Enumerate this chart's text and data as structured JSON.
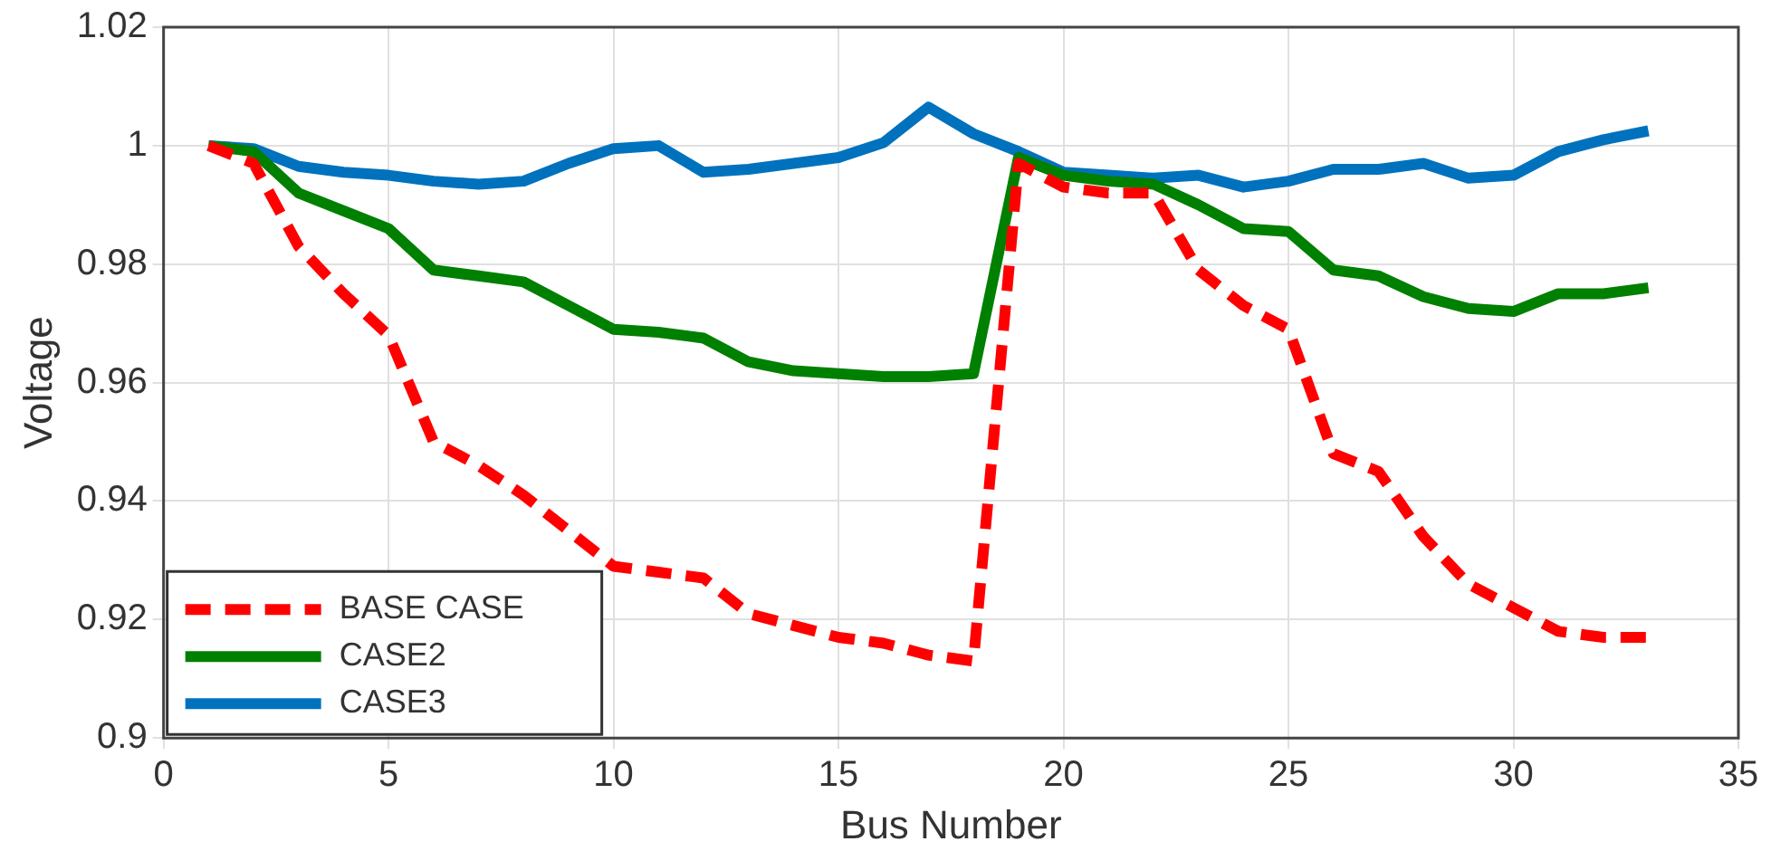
{
  "chart_data": {
    "type": "line",
    "xlabel": "Bus Number",
    "ylabel": "Voltage",
    "x": [
      1,
      2,
      3,
      4,
      5,
      6,
      7,
      8,
      9,
      10,
      11,
      12,
      13,
      14,
      15,
      16,
      17,
      18,
      19,
      20,
      21,
      22,
      23,
      24,
      25,
      26,
      27,
      28,
      29,
      30,
      31,
      32,
      33
    ],
    "series": [
      {
        "name": "BASE CASE",
        "color": "#ff0000",
        "line_style": "dashed",
        "values": [
          1.0,
          0.997,
          0.983,
          0.975,
          0.968,
          0.95,
          0.946,
          0.941,
          0.935,
          0.929,
          0.928,
          0.927,
          0.921,
          0.919,
          0.917,
          0.916,
          0.914,
          0.913,
          0.997,
          0.993,
          0.992,
          0.992,
          0.979,
          0.973,
          0.969,
          0.948,
          0.945,
          0.934,
          0.926,
          0.922,
          0.918,
          0.917,
          0.917
        ]
      },
      {
        "name": "CASE2",
        "color": "#008000",
        "line_style": "solid",
        "values": [
          1.0,
          0.999,
          0.992,
          0.989,
          0.986,
          0.979,
          0.978,
          0.977,
          0.973,
          0.969,
          0.9685,
          0.9675,
          0.9635,
          0.962,
          0.9615,
          0.961,
          0.961,
          0.9615,
          0.998,
          0.995,
          0.994,
          0.9935,
          0.99,
          0.986,
          0.9855,
          0.979,
          0.978,
          0.9745,
          0.9725,
          0.972,
          0.975,
          0.975,
          0.976
        ]
      },
      {
        "name": "CASE3",
        "color": "#0072bd",
        "line_style": "solid",
        "values": [
          1.0,
          0.9995,
          0.9965,
          0.9955,
          0.995,
          0.994,
          0.9935,
          0.994,
          0.997,
          0.9995,
          1.0,
          0.9955,
          0.996,
          0.997,
          0.998,
          1.0005,
          1.0065,
          1.002,
          0.999,
          0.9955,
          0.995,
          0.9945,
          0.995,
          0.993,
          0.994,
          0.996,
          0.996,
          0.997,
          0.9945,
          0.995,
          0.999,
          1.001,
          1.0025
        ]
      }
    ],
    "xlim": [
      0,
      35
    ],
    "xticks": [
      0,
      5,
      10,
      15,
      20,
      25,
      30,
      35
    ],
    "ylim": [
      0.9,
      1.02
    ],
    "yticks": [
      {
        "value": 0.9,
        "label": "0.9"
      },
      {
        "value": 0.92,
        "label": "0.92"
      },
      {
        "value": 0.94,
        "label": "0.94"
      },
      {
        "value": 0.96,
        "label": "0.96"
      },
      {
        "value": 0.98,
        "label": "0.98"
      },
      {
        "value": 1,
        "label": "1"
      },
      {
        "value": 1.02,
        "label": "1.02"
      }
    ],
    "grid": true,
    "legend": "bottom left",
    "marker": "none"
  }
}
